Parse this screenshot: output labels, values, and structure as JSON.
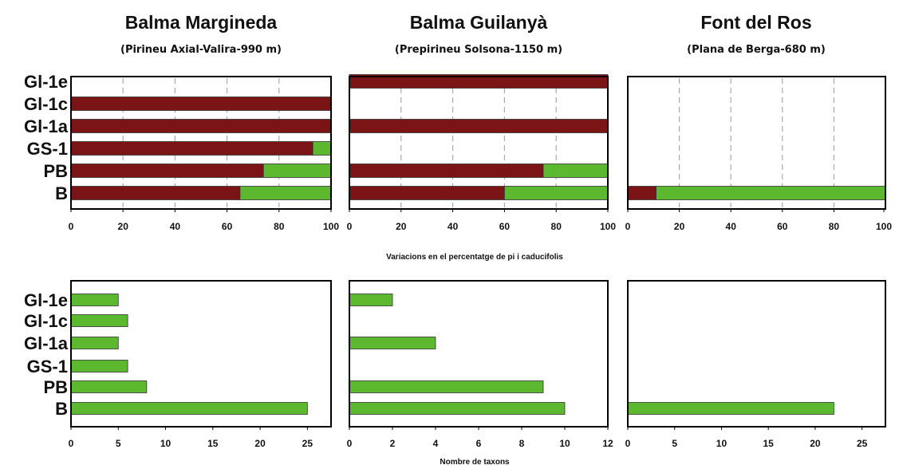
{
  "chart_data": [
    {
      "type": "bar",
      "orientation": "horizontal",
      "stacked": true,
      "title": "Balma Margineda",
      "subtitle": "(Pirineu Axial-Valira-990 m)",
      "categories": [
        "Gl-1e",
        "Gl-1c",
        "Gl-1a",
        "GS-1",
        "PB",
        "B"
      ],
      "series": [
        {
          "values": [
            null,
            100,
            100,
            93,
            74,
            65
          ],
          "color": "#7b1416"
        },
        {
          "values": [
            null,
            0,
            0,
            7,
            26,
            35
          ],
          "color": "#5cb82e"
        }
      ],
      "xlim": [
        0,
        100
      ],
      "xticks": [
        "0",
        "20",
        "40",
        "60",
        "80",
        "100"
      ],
      "grid": true
    },
    {
      "type": "bar",
      "orientation": "horizontal",
      "stacked": true,
      "title": "Balma Guilanyà",
      "subtitle": "(Prepirineu Solsona-1150 m)",
      "categories": [
        "Gl-1e",
        "Gl-1c",
        "Gl-1a",
        "GS-1",
        "PB",
        "B"
      ],
      "series": [
        {
          "values": [
            100,
            null,
            100,
            null,
            75,
            60
          ],
          "color": "#7b1416"
        },
        {
          "values": [
            0,
            null,
            0,
            null,
            25,
            40
          ],
          "color": "#5cb82e"
        }
      ],
      "xlim": [
        0,
        100
      ],
      "xticks": [
        "0",
        "20",
        "40",
        "60",
        "80",
        "100"
      ],
      "grid": true
    },
    {
      "type": "bar",
      "orientation": "horizontal",
      "stacked": true,
      "title": "Font del Ros",
      "subtitle": "(Plana de Berga-680 m)",
      "categories": [
        "Gl-1e",
        "Gl-1c",
        "Gl-1a",
        "GS-1",
        "PB",
        "B"
      ],
      "series": [
        {
          "values": [
            null,
            null,
            null,
            null,
            null,
            11
          ],
          "color": "#7b1416"
        },
        {
          "values": [
            null,
            null,
            null,
            null,
            null,
            89
          ],
          "color": "#5cb82e"
        }
      ],
      "xlim": [
        0,
        100
      ],
      "xticks": [
        "0",
        "20",
        "40",
        "60",
        "80",
        "100"
      ],
      "grid": true
    },
    {
      "type": "bar",
      "orientation": "horizontal",
      "categories": [
        "Gl-1e",
        "Gl-1c",
        "Gl-1a",
        "GS-1",
        "PB",
        "B"
      ],
      "series": [
        {
          "values": [
            5,
            6,
            5,
            6,
            8,
            25
          ],
          "color": "#5cb82e"
        }
      ],
      "xlim": [
        0,
        27.5
      ],
      "xticks": [
        "0",
        "5",
        "10",
        "15",
        "20",
        "25"
      ],
      "grid": false
    },
    {
      "type": "bar",
      "orientation": "horizontal",
      "categories": [
        "Gl-1e",
        "Gl-1c",
        "Gl-1a",
        "GS-1",
        "PB",
        "B"
      ],
      "series": [
        {
          "values": [
            2,
            null,
            4,
            null,
            9,
            10
          ],
          "color": "#5cb82e"
        }
      ],
      "xlim": [
        0,
        12
      ],
      "xticks": [
        "0",
        "2",
        "4",
        "6",
        "8",
        "10",
        "12"
      ],
      "grid": false
    },
    {
      "type": "bar",
      "orientation": "horizontal",
      "categories": [
        "Gl-1e",
        "Gl-1c",
        "Gl-1a",
        "GS-1",
        "PB",
        "B"
      ],
      "series": [
        {
          "values": [
            null,
            null,
            null,
            null,
            null,
            22
          ],
          "color": "#5cb82e"
        }
      ],
      "xlim": [
        0,
        27.5
      ],
      "xticks": [
        "0",
        "5",
        "10",
        "15",
        "20",
        "25"
      ],
      "grid": false
    }
  ],
  "axis_labels": {
    "top_xlabel": "Variacions en el percentatge de pi i caducifolis",
    "bottom_xlabel": "Nombre de taxons"
  }
}
